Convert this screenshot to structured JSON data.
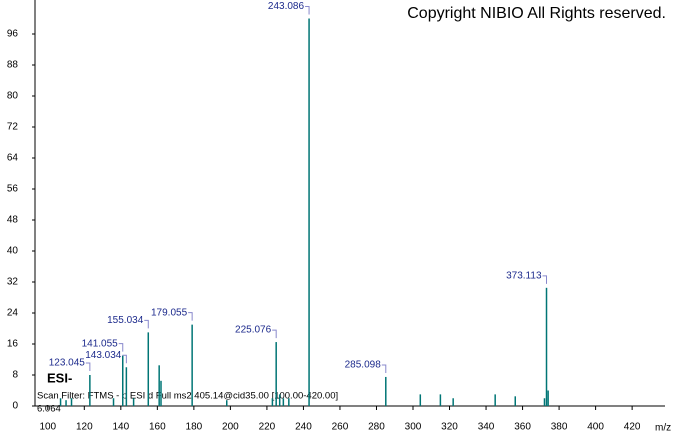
{
  "chart_data": {
    "type": "stem",
    "copyright": "Copyright NIBIO All Rights reserved.",
    "mode": "ESI-",
    "scan_filter": "Scan Filter: FTMS - p ESI d Full ms2 405.14@cid35.00 [100.00-420.00]",
    "retention_time": "6.064",
    "x_label": "m/z",
    "xlim": [
      93,
      438
    ],
    "xticks": [
      100,
      120,
      140,
      160,
      180,
      200,
      220,
      240,
      260,
      280,
      300,
      320,
      340,
      360,
      380,
      400,
      420
    ],
    "ylim": [
      0,
      104
    ],
    "yticks": [
      0,
      8,
      16,
      24,
      32,
      40,
      48,
      56,
      64,
      72,
      80,
      88,
      96
    ],
    "label_color": "#1c2a8c",
    "series": [
      {
        "color": "#007575",
        "show_labels": true,
        "x": [
          123.045,
          141.055,
          143.034,
          155.034,
          179.055,
          225.076,
          243.086,
          285.098,
          373.113
        ],
        "values": [
          8,
          13,
          10,
          19,
          21,
          16.5,
          100,
          7.5,
          30.5
        ]
      },
      {
        "color": "#007575",
        "show_labels": false,
        "x": [
          107,
          110,
          113,
          136,
          147,
          161,
          162,
          198,
          223,
          227,
          229,
          232,
          304,
          315,
          322,
          345,
          356,
          372,
          374
        ],
        "values": [
          2,
          1.5,
          2,
          2,
          2,
          10.5,
          6.5,
          1.5,
          2,
          3,
          2,
          2,
          3,
          3,
          2,
          3,
          2.5,
          2,
          4
        ]
      }
    ]
  }
}
